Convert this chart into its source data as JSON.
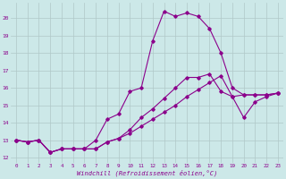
{
  "title": "",
  "xlabel": "Windchill (Refroidissement éolien,°C)",
  "ylabel": "",
  "background_color": "#cce8e8",
  "line_color": "#8b008b",
  "grid_color": "#b0c8c8",
  "xlim": [
    -0.5,
    23.5
  ],
  "ylim": [
    11.7,
    20.9
  ],
  "xticks": [
    0,
    1,
    2,
    3,
    4,
    5,
    6,
    7,
    8,
    9,
    10,
    11,
    12,
    13,
    14,
    15,
    16,
    17,
    18,
    19,
    20,
    21,
    22,
    23
  ],
  "yticks": [
    12,
    13,
    14,
    15,
    16,
    17,
    18,
    19,
    20
  ],
  "series1_x": [
    0,
    1,
    2,
    3,
    4,
    5,
    6,
    7,
    8,
    9,
    10,
    11,
    12,
    13,
    14,
    15,
    16,
    17,
    18,
    19,
    20,
    21,
    22,
    23
  ],
  "series1_y": [
    13.0,
    12.9,
    13.0,
    12.3,
    12.5,
    12.5,
    12.5,
    13.0,
    14.2,
    14.5,
    15.8,
    16.0,
    18.7,
    20.4,
    20.1,
    20.3,
    20.1,
    19.4,
    18.0,
    16.0,
    15.6,
    15.6,
    15.6,
    15.7
  ],
  "series2_x": [
    0,
    1,
    2,
    3,
    4,
    5,
    6,
    7,
    8,
    9,
    10,
    11,
    12,
    13,
    14,
    15,
    16,
    17,
    18,
    19,
    20,
    21,
    22,
    23
  ],
  "series2_y": [
    13.0,
    12.9,
    13.0,
    12.3,
    12.5,
    12.5,
    12.5,
    12.5,
    12.9,
    13.1,
    13.6,
    14.3,
    14.8,
    15.4,
    16.0,
    16.6,
    16.6,
    16.8,
    15.8,
    15.5,
    15.6,
    15.6,
    15.6,
    15.7
  ],
  "series3_x": [
    0,
    1,
    2,
    3,
    4,
    5,
    6,
    7,
    8,
    9,
    10,
    11,
    12,
    13,
    14,
    15,
    16,
    17,
    18,
    19,
    20,
    21,
    22,
    23
  ],
  "series3_y": [
    13.0,
    12.9,
    13.0,
    12.3,
    12.5,
    12.5,
    12.5,
    12.5,
    12.9,
    13.1,
    13.4,
    13.8,
    14.2,
    14.6,
    15.0,
    15.5,
    15.9,
    16.3,
    16.7,
    15.5,
    14.3,
    15.2,
    15.5,
    15.7
  ]
}
